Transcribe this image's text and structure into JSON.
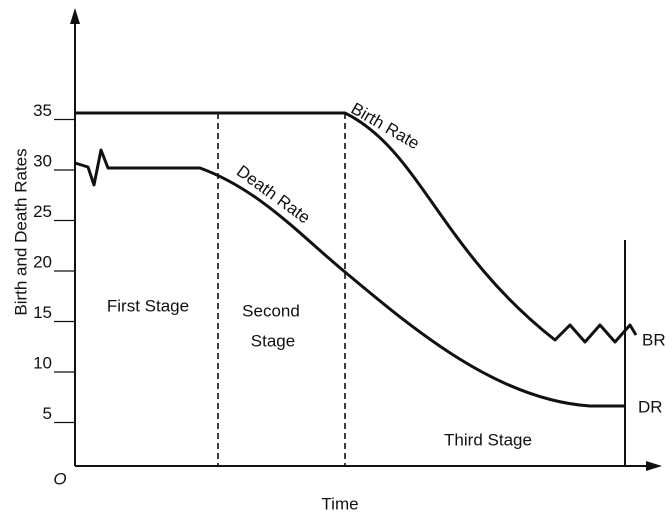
{
  "y_axis_label": "Birth and Death Rates",
  "x_axis_label": "Time",
  "origin_label": "O",
  "yticks": [
    35,
    30,
    25,
    20,
    15,
    10,
    5
  ],
  "stages": [
    "First Stage",
    "Second",
    "Stage",
    "Third Stage"
  ],
  "curve_labels": {
    "birth": "Birth Rate",
    "death": "Death Rate"
  },
  "end_labels": {
    "birth": "BR",
    "death": "DR"
  }
}
